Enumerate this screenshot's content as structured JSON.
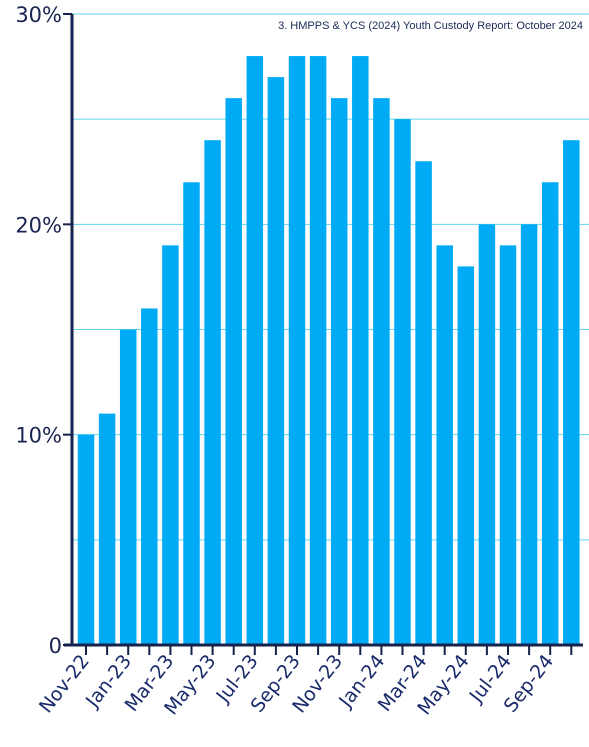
{
  "source_note": "3. HMPPS & YCS (2024) Youth Custody Report: October 2024",
  "chart_data": {
    "type": "bar",
    "title": "",
    "xlabel": "",
    "ylabel": "",
    "categories": [
      "Nov-22",
      "Dec-22",
      "Jan-23",
      "Feb-23",
      "Mar-23",
      "Apr-23",
      "May-23",
      "Jun-23",
      "Jul-23",
      "Aug-23",
      "Sep-23",
      "Oct-23",
      "Nov-23",
      "Dec-23",
      "Jan-24",
      "Feb-24",
      "Mar-24",
      "Apr-24",
      "May-24",
      "Jun-24",
      "Jul-24",
      "Aug-24",
      "Sep-24",
      "Oct-24"
    ],
    "x_tick_labels": [
      "Nov-22",
      "Jan-23",
      "Mar-23",
      "May-23",
      "Jul-23",
      "Sep-23",
      "Nov-23",
      "Jan-24",
      "Mar-24",
      "May-24",
      "Jul-24",
      "Sep-24"
    ],
    "values": [
      10,
      11,
      15,
      16,
      19,
      22,
      24,
      26,
      28,
      27,
      28,
      28,
      26,
      28,
      26,
      25,
      23,
      19,
      18,
      20,
      19,
      20,
      22,
      24
    ],
    "unit": "%",
    "ylim": [
      0,
      30
    ],
    "y_ticks": [
      {
        "value": 0,
        "label": "0"
      },
      {
        "value": 10,
        "label": "10%"
      },
      {
        "value": 20,
        "label": "20%"
      },
      {
        "value": 30,
        "label": "30%"
      }
    ],
    "gridlines": [
      5,
      10,
      15,
      20,
      25,
      30
    ],
    "grid": true,
    "legend": "none",
    "colors": {
      "bar": "#00aaf5",
      "grid": "#5fd6ee",
      "axis": "#14224d",
      "text": "#1a2450"
    }
  }
}
